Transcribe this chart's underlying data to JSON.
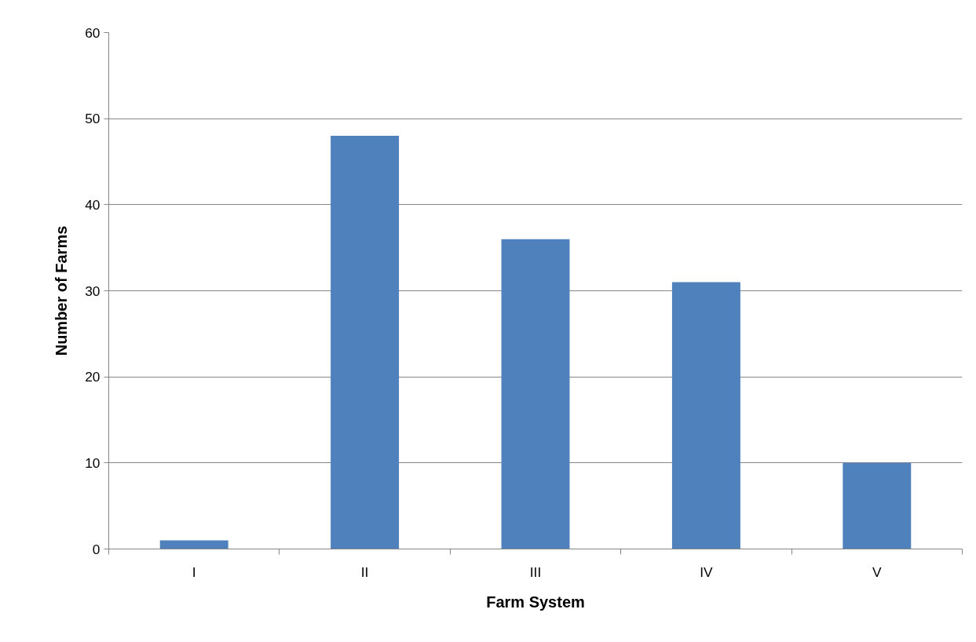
{
  "chart_data": {
    "type": "bar",
    "xlabel": "Farm System",
    "ylabel": "Number of Farms",
    "categories": [
      "I",
      "II",
      "III",
      "IV",
      "V"
    ],
    "values": [
      1,
      48,
      36,
      31,
      10
    ],
    "color": "#4f81bd",
    "ylim": [
      0,
      60
    ],
    "yticks": [
      0,
      10,
      20,
      30,
      40,
      50,
      60
    ],
    "grid": "y"
  }
}
